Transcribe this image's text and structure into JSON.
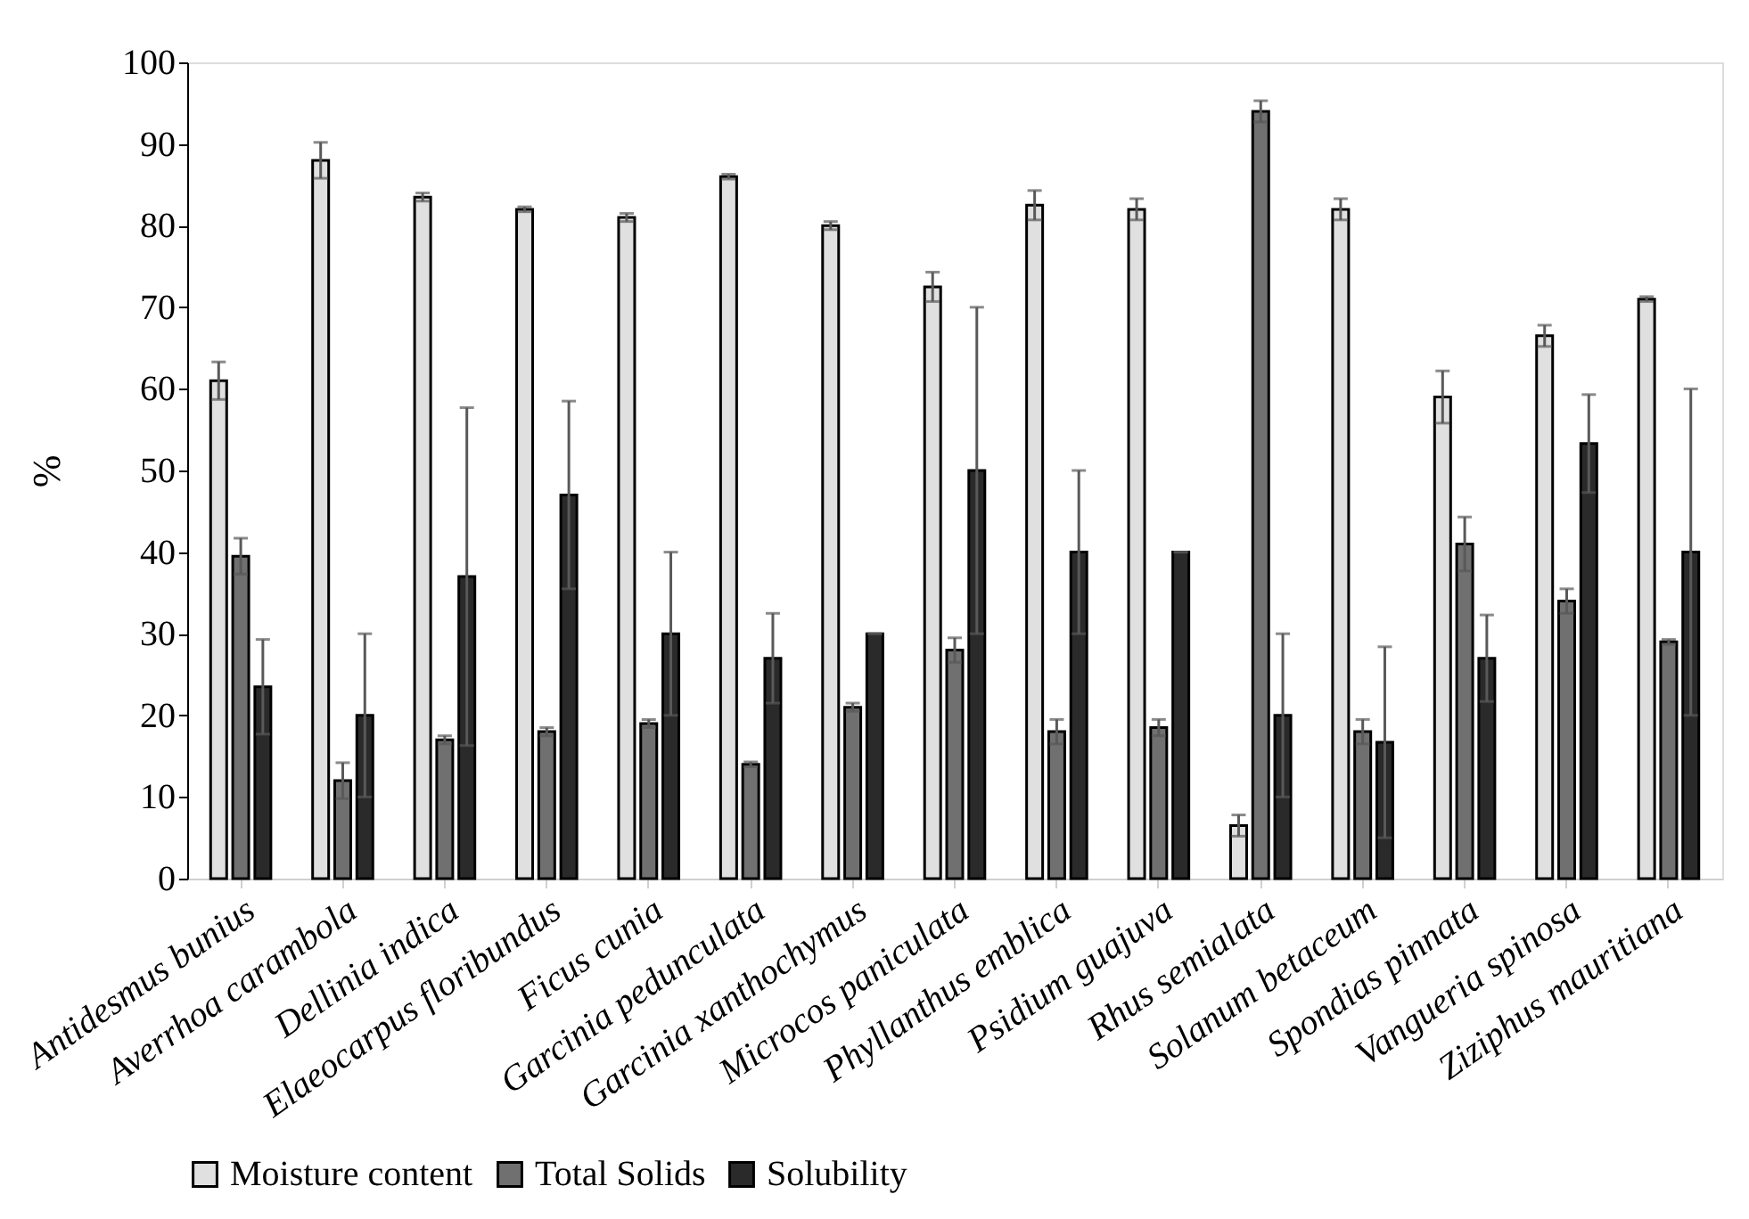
{
  "chart_data": {
    "type": "bar",
    "ylabel": "%",
    "categories": [
      "Antidesmus bunius",
      "Averrhoa carambola",
      "Dellinia indica",
      "Elaeocarpus floribundus",
      "Ficus cunia",
      "Garcinia pedunculata",
      "Garcinia xanthochymus",
      "Microcos paniculata",
      "Phyllanthus emblica",
      "Psidium guajuva",
      "Rhus semialata",
      "Solanum betaceum",
      "Spondias pinnata",
      "Vangueria spinosa",
      "Ziziphus mauritiana"
    ],
    "series": [
      {
        "name": "Moisture content",
        "color": "#e0e0e0",
        "values": [
          61,
          88,
          83.5,
          82,
          81,
          86,
          80,
          72.5,
          82.5,
          82,
          6.5,
          82,
          59,
          66.5,
          71
        ],
        "errors": [
          2.3,
          2.2,
          0.5,
          0.3,
          0.5,
          0.3,
          0.5,
          1.8,
          1.8,
          1.3,
          1.3,
          1.3,
          3.2,
          1.3,
          0.3
        ]
      },
      {
        "name": "Total Solids",
        "color": "#707070",
        "values": [
          39.5,
          12,
          17,
          18,
          19,
          14,
          21,
          28,
          18,
          18.5,
          94,
          18,
          41,
          34,
          29
        ],
        "errors": [
          2.2,
          2.2,
          0.5,
          0.5,
          0.5,
          0.3,
          0.5,
          1.5,
          1.5,
          1,
          1.3,
          1.5,
          3.3,
          1.5,
          0.3
        ]
      },
      {
        "name": "Solubility",
        "color": "#2a2a2a",
        "values": [
          23.5,
          20,
          37,
          47,
          30,
          27,
          30,
          50,
          40,
          40,
          20,
          16.7,
          27,
          53.3,
          40
        ],
        "errors": [
          5.8,
          10,
          20.7,
          11.5,
          10,
          5.5,
          0,
          20,
          10,
          0,
          10,
          11.7,
          5.3,
          6,
          20
        ]
      }
    ],
    "ylim": [
      0,
      100
    ],
    "yticks": [
      0,
      10,
      20,
      30,
      40,
      50,
      60,
      70,
      80,
      90,
      100
    ],
    "grid": false,
    "legend": "bottom"
  }
}
